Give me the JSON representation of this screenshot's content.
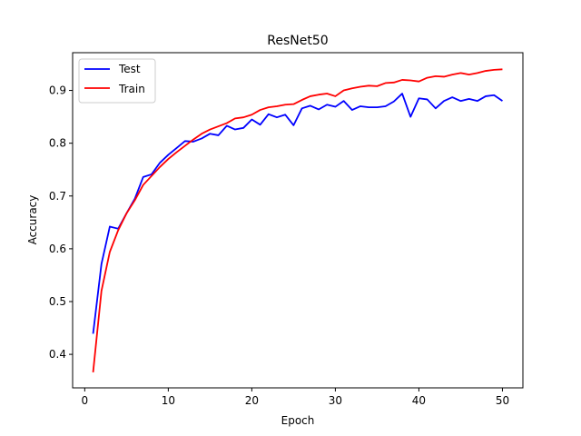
{
  "chart_data": {
    "type": "line",
    "title": "ResNet50",
    "xlabel": "Epoch",
    "ylabel": "Accuracy",
    "xlim": [
      -1.45,
      52.45
    ],
    "ylim": [
      0.3365,
      0.9715
    ],
    "xticks": [
      0,
      10,
      20,
      30,
      40,
      50
    ],
    "yticks": [
      0.4,
      0.5,
      0.6,
      0.7,
      0.8,
      0.9
    ],
    "xtick_labels": [
      "0",
      "10",
      "20",
      "30",
      "40",
      "50"
    ],
    "ytick_labels": [
      "0.4",
      "0.5",
      "0.6",
      "0.7",
      "0.8",
      "0.9"
    ],
    "grid": false,
    "legend_position": "top-left",
    "x": [
      1,
      2,
      3,
      4,
      5,
      6,
      7,
      8,
      9,
      10,
      11,
      12,
      13,
      14,
      15,
      16,
      17,
      18,
      19,
      20,
      21,
      22,
      23,
      24,
      25,
      26,
      27,
      28,
      29,
      30,
      31,
      32,
      33,
      34,
      35,
      36,
      37,
      38,
      39,
      40,
      41,
      42,
      43,
      44,
      45,
      46,
      47,
      48,
      49,
      50
    ],
    "series": [
      {
        "name": "Test",
        "color": "#0000ff",
        "values": [
          0.439,
          0.571,
          0.642,
          0.638,
          0.667,
          0.695,
          0.736,
          0.741,
          0.763,
          0.778,
          0.791,
          0.804,
          0.803,
          0.809,
          0.818,
          0.815,
          0.833,
          0.826,
          0.829,
          0.845,
          0.835,
          0.855,
          0.849,
          0.854,
          0.834,
          0.866,
          0.871,
          0.864,
          0.873,
          0.869,
          0.88,
          0.863,
          0.87,
          0.868,
          0.868,
          0.87,
          0.879,
          0.894,
          0.85,
          0.885,
          0.883,
          0.866,
          0.88,
          0.887,
          0.88,
          0.884,
          0.88,
          0.889,
          0.891,
          0.88
        ]
      },
      {
        "name": "Train",
        "color": "#ff0000",
        "values": [
          0.366,
          0.52,
          0.594,
          0.635,
          0.667,
          0.692,
          0.721,
          0.738,
          0.755,
          0.77,
          0.783,
          0.795,
          0.807,
          0.818,
          0.826,
          0.832,
          0.838,
          0.847,
          0.849,
          0.854,
          0.863,
          0.868,
          0.87,
          0.873,
          0.874,
          0.882,
          0.889,
          0.892,
          0.894,
          0.889,
          0.9,
          0.904,
          0.907,
          0.909,
          0.908,
          0.914,
          0.915,
          0.92,
          0.919,
          0.917,
          0.924,
          0.927,
          0.926,
          0.93,
          0.933,
          0.93,
          0.933,
          0.937,
          0.939,
          0.94
        ]
      }
    ]
  }
}
